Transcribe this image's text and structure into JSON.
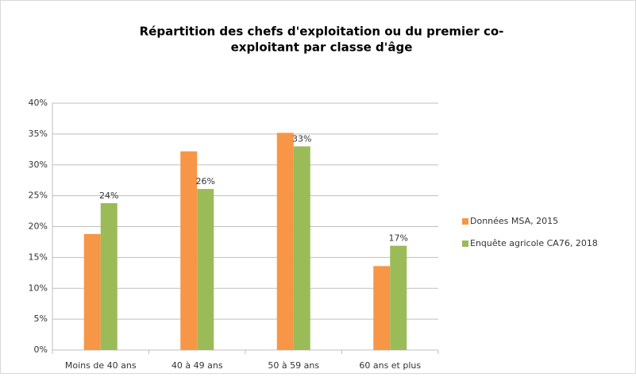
{
  "chart_data": {
    "type": "bar",
    "title": [
      "Répartition des chefs d'exploitation ou du premier co-",
      "exploitant par classe d'âge"
    ],
    "categories": [
      "Moins de 40 ans",
      "40 à 49 ans",
      "50 à 59 ans",
      "60 ans et plus"
    ],
    "series": [
      {
        "name": "Données MSA, 2015",
        "color": "#f79646",
        "values": [
          18.8,
          32.2,
          35.2,
          13.6
        ]
      },
      {
        "name": "Enquête agricole CA76, 2018",
        "color": "#9bbb59",
        "values": [
          23.8,
          26.1,
          33.0,
          16.9
        ],
        "value_labels": [
          "24%",
          "26%",
          "33%",
          "17%"
        ]
      }
    ],
    "ylim": [
      0,
      40
    ],
    "yticks": [
      {
        "value": 0,
        "label": "0%"
      },
      {
        "value": 5,
        "label": "5%"
      },
      {
        "value": 10,
        "label": "10%"
      },
      {
        "value": 15,
        "label": "15%"
      },
      {
        "value": 20,
        "label": "20%"
      },
      {
        "value": 25,
        "label": "25%"
      },
      {
        "value": 30,
        "label": "30%"
      },
      {
        "value": 35,
        "label": "35%"
      },
      {
        "value": 40,
        "label": "40%"
      }
    ],
    "grid": true,
    "legend": "right"
  }
}
